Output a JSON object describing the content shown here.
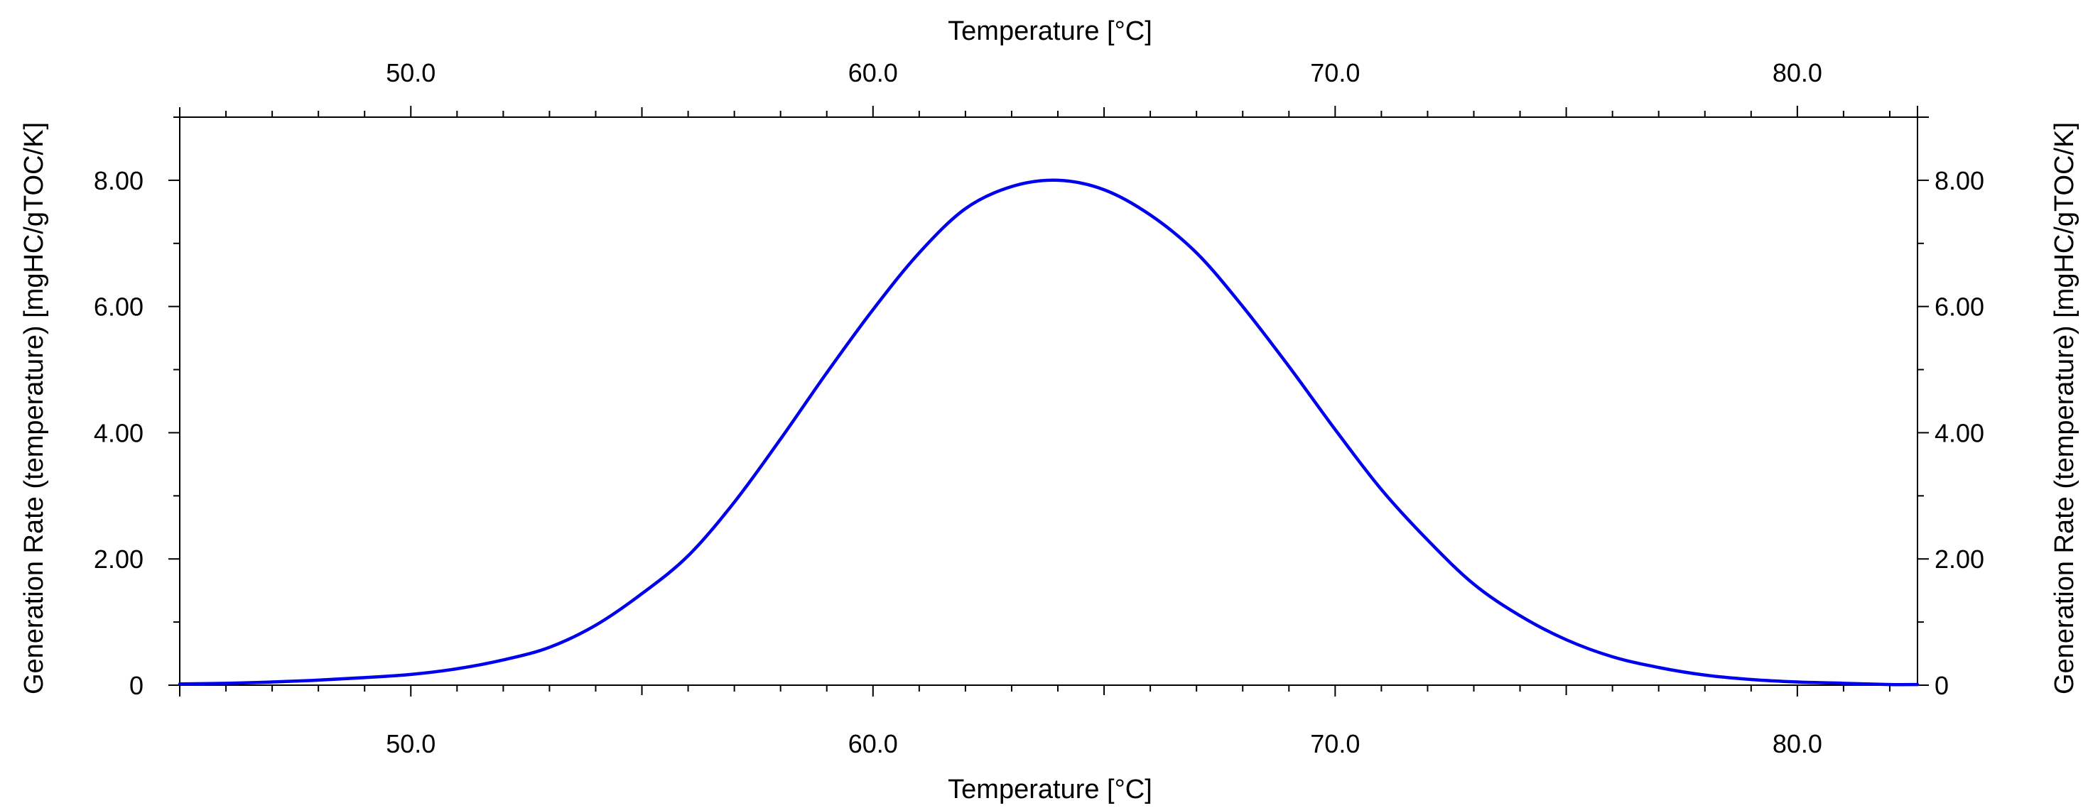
{
  "chart_data": {
    "type": "line",
    "title": "",
    "xlabel": "Temperature [°C]",
    "x2label": "Temperature [°C]",
    "ylabel": "Generation Rate (temperature) [mgHC/gTOC/K]",
    "y2label": "Generation Rate (temperature) [mgHC/gTOC/K]",
    "xlim": [
      45.0,
      82.6
    ],
    "ylim": [
      0,
      9.0
    ],
    "x_ticks": [
      50.0,
      60.0,
      70.0,
      80.0
    ],
    "x_tick_labels": [
      "50.0",
      "60.0",
      "70.0",
      "80.0"
    ],
    "x_minor_step": 1.0,
    "y_ticks": [
      0,
      2.0,
      4.0,
      6.0,
      8.0
    ],
    "y_tick_labels": [
      "0",
      "2.00",
      "4.00",
      "6.00",
      "8.00"
    ],
    "y_minor_step": 1.0,
    "grid": false,
    "line_color": "#0000ee",
    "series": [
      {
        "x": [
          45.0,
          46.0,
          47.0,
          48.0,
          49.0,
          50.0,
          51.0,
          52.0,
          53.0,
          54.0,
          55.0,
          56.0,
          57.0,
          58.0,
          59.0,
          60.0,
          61.0,
          62.0,
          63.0,
          64.0,
          65.0,
          66.0,
          67.0,
          68.0,
          69.0,
          70.0,
          71.0,
          72.0,
          73.0,
          74.0,
          75.0,
          76.0,
          77.0,
          78.0,
          79.0,
          80.0,
          81.0,
          82.0,
          82.6
        ],
        "y": [
          0.02,
          0.03,
          0.05,
          0.08,
          0.12,
          0.17,
          0.26,
          0.4,
          0.6,
          0.95,
          1.45,
          2.05,
          2.9,
          3.9,
          4.95,
          5.95,
          6.85,
          7.55,
          7.9,
          8.0,
          7.85,
          7.45,
          6.85,
          6.0,
          5.05,
          4.05,
          3.1,
          2.3,
          1.6,
          1.1,
          0.72,
          0.45,
          0.28,
          0.16,
          0.09,
          0.05,
          0.03,
          0.01,
          0.01
        ]
      }
    ]
  }
}
